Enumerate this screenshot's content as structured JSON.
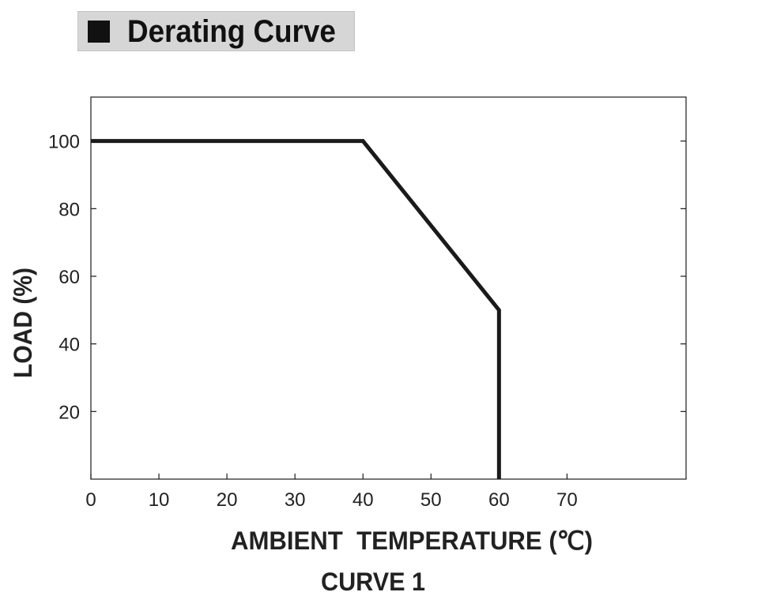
{
  "header": {
    "title": "Derating Curve"
  },
  "chart_data": {
    "type": "line",
    "xlabel": "AMBIENT  TEMPERATURE (℃)",
    "ylabel": "LOAD (%)",
    "caption": "CURVE 1",
    "xlim": [
      0,
      87.5
    ],
    "ylim": [
      0,
      113
    ],
    "x_ticks": [
      0,
      10,
      20,
      30,
      40,
      50,
      60,
      70
    ],
    "y_ticks": [
      20,
      40,
      60,
      80,
      100
    ],
    "grid": false,
    "series": [
      {
        "x": [
          0,
          40,
          60,
          60
        ],
        "y": [
          100,
          100,
          50,
          0
        ]
      }
    ],
    "colors": {
      "line": "#1a1a1a",
      "axis": "#1a1a1a",
      "text": "#222222"
    }
  }
}
